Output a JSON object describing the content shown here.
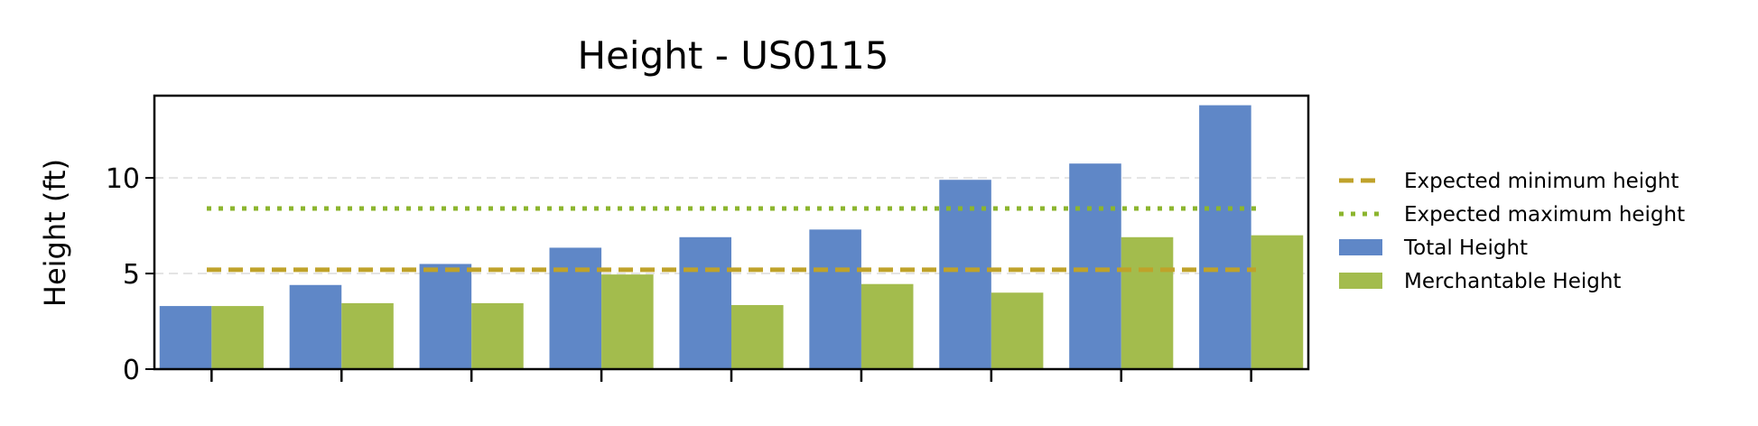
{
  "chart_data": {
    "type": "bar",
    "title": "Height - US0115",
    "xlabel": "",
    "ylabel": "Height (ft)",
    "ylim": [
      0,
      14.3
    ],
    "yticks": [
      0,
      5,
      10
    ],
    "categories": [
      "",
      "",
      "",
      "",
      "",
      "",
      "",
      "",
      ""
    ],
    "series": [
      {
        "name": "Total Height",
        "color": "#5f87c7",
        "values": [
          3.3,
          4.4,
          5.5,
          6.35,
          6.9,
          7.3,
          9.9,
          10.75,
          13.8
        ]
      },
      {
        "name": "Merchantable Height",
        "color": "#a3bc4d",
        "values": [
          3.3,
          3.45,
          3.45,
          4.95,
          3.35,
          4.45,
          4.0,
          6.9,
          7.0
        ]
      }
    ],
    "reference_lines": [
      {
        "name": "Expected minimum height",
        "value": 5.2,
        "style": "dashed",
        "color": "#bfa22a"
      },
      {
        "name": "Expected maximum height",
        "value": 8.4,
        "style": "dotted",
        "color": "#8cb52e"
      }
    ],
    "grid": "horizontal",
    "legend_placement": "right",
    "title_color": "#3b64b0"
  }
}
